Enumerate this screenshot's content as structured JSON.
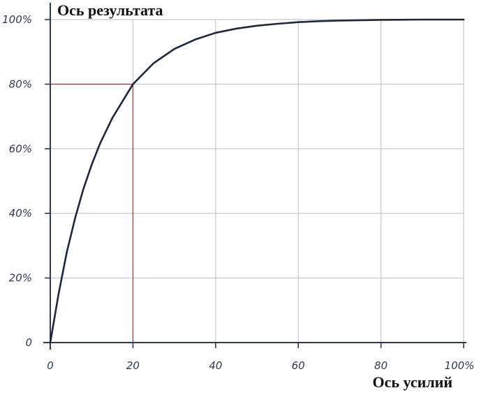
{
  "chart_data": {
    "type": "line",
    "title": "",
    "xlabel": "Ось усилий",
    "ylabel": "Ось результата",
    "xlim": [
      0,
      100
    ],
    "ylim": [
      0,
      100
    ],
    "x_ticks": [
      "0",
      "20",
      "40",
      "60",
      "80",
      "100%"
    ],
    "y_ticks": [
      "0",
      "20%",
      "40%",
      "60%",
      "80%",
      "100%"
    ],
    "grid": true,
    "series": [
      {
        "x": [
          0,
          2,
          4,
          6,
          8,
          10,
          12,
          15,
          20,
          25,
          30,
          35,
          40,
          45,
          50,
          55,
          60,
          65,
          70,
          75,
          80,
          90,
          100
        ],
        "y": [
          0,
          15,
          28,
          38.5,
          47.5,
          55,
          61.5,
          69.5,
          80,
          86.5,
          90.9,
          93.8,
          95.9,
          97.2,
          98.1,
          98.7,
          99.2,
          99.5,
          99.7,
          99.8,
          99.9,
          100,
          100
        ],
        "color": "#1c2740"
      }
    ],
    "annotations": [
      {
        "type": "reference_lines",
        "x": 20,
        "y": 80,
        "color": "#b03434"
      }
    ],
    "colors": {
      "grid": "#c4c8d2",
      "axis": "#2f3a52"
    }
  }
}
